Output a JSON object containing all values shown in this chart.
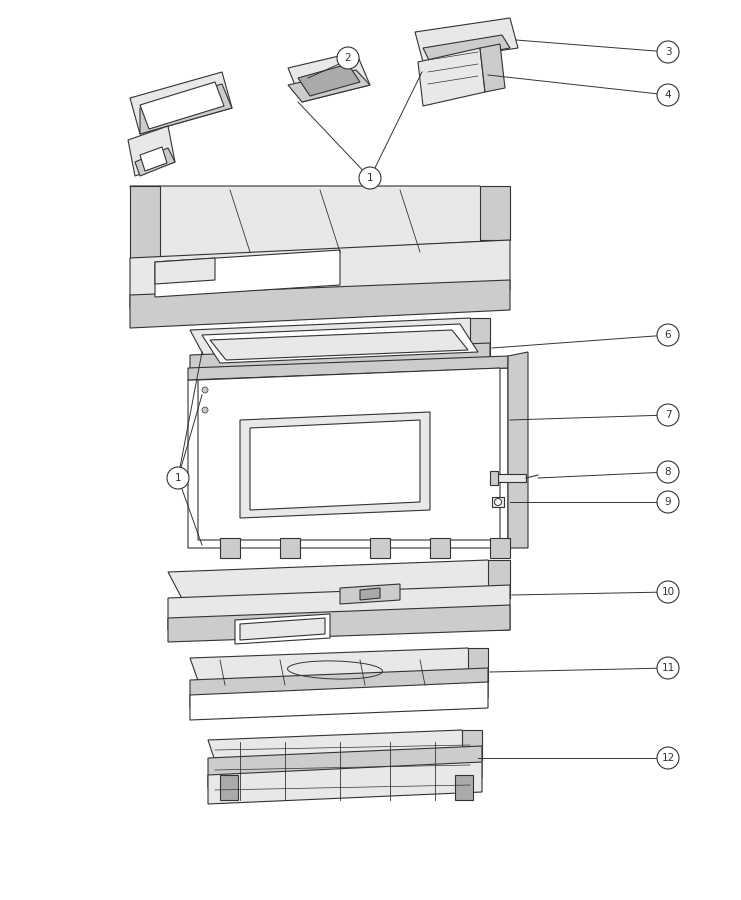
{
  "bg_color": "#ffffff",
  "line_color": "#333333",
  "fig_width": 7.41,
  "fig_height": 9.0,
  "shade_light": "#e8e8e8",
  "shade_mid": "#cccccc",
  "shade_dark": "#aaaaaa",
  "white": "#ffffff"
}
